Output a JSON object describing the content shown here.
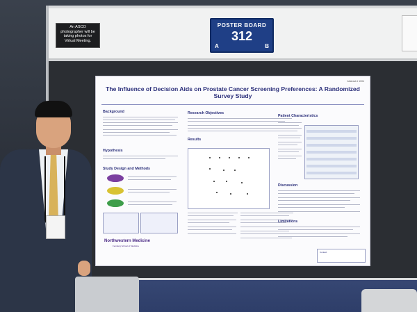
{
  "sign": {
    "asco_notice": "An ASCO photographer will be taking photos for Virtual Meeting.",
    "poster_board_label": "POSTER BOARD",
    "poster_board_number": "312",
    "left_letter": "A",
    "right_letter": "B"
  },
  "poster": {
    "abstract_number": "Abstract # 1004",
    "title": "The Influence of Decision Aids on Prostate Cancer Screening Preferences: A Randomized Survey Study",
    "sections": {
      "background": "Background",
      "hypothesis": "Hypothesis",
      "study_design": "Study Design and Methods",
      "research_objectives": "Research Objectives",
      "results": "Results",
      "patient_characteristics": "Patient Characteristics",
      "discussion": "Discussion",
      "limitations": "Limitations"
    },
    "logo": "Northwestern Medicine",
    "logo_sub": "Feinberg School of Medicine",
    "contact": "Contact"
  },
  "colors": {
    "poster_title": "#2b2f7a",
    "board_sign": "#1f3f86",
    "oval_purple": "#7b3fa0",
    "oval_yellow": "#d8c232",
    "oval_green": "#3e9d4a"
  }
}
